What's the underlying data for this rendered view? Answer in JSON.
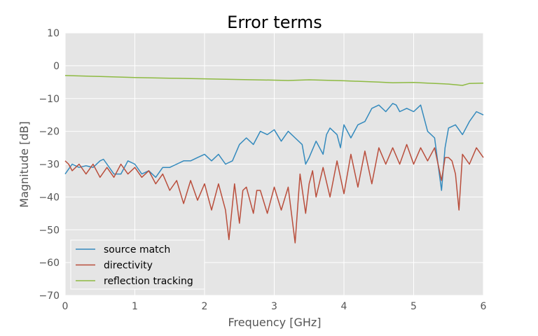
{
  "chart_data": {
    "type": "line",
    "title": "Error terms",
    "xlabel": "Frequency [GHz]",
    "ylabel": "Magnitude [dB]",
    "xlim": [
      0,
      6
    ],
    "ylim": [
      -70,
      10
    ],
    "xticks": [
      0,
      1,
      2,
      3,
      4,
      5,
      6
    ],
    "yticks": [
      10,
      0,
      -10,
      -20,
      -30,
      -40,
      -50,
      -60,
      -70
    ],
    "grid": true,
    "legend_position": "lower-left",
    "background_color": "#e5e5e5",
    "series": [
      {
        "name": "source match",
        "color": "#348abd",
        "x": [
          0,
          0.1,
          0.2,
          0.3,
          0.4,
          0.5,
          0.55,
          0.6,
          0.7,
          0.8,
          0.9,
          1.0,
          1.1,
          1.2,
          1.3,
          1.4,
          1.5,
          1.6,
          1.7,
          1.8,
          1.9,
          2.0,
          2.1,
          2.2,
          2.3,
          2.4,
          2.5,
          2.6,
          2.7,
          2.8,
          2.9,
          3.0,
          3.1,
          3.2,
          3.3,
          3.4,
          3.45,
          3.5,
          3.6,
          3.7,
          3.75,
          3.8,
          3.9,
          3.95,
          4.0,
          4.1,
          4.2,
          4.3,
          4.4,
          4.5,
          4.6,
          4.7,
          4.75,
          4.8,
          4.9,
          5.0,
          5.1,
          5.2,
          5.3,
          5.35,
          5.4,
          5.45,
          5.5,
          5.6,
          5.7,
          5.8,
          5.9,
          6.0
        ],
        "y": [
          -33,
          -30,
          -31,
          -30.5,
          -31,
          -29,
          -28.5,
          -30,
          -33,
          -33,
          -29,
          -30,
          -33,
          -32,
          -34,
          -31,
          -31,
          -30,
          -29,
          -29,
          -28,
          -27,
          -29,
          -27,
          -30,
          -29,
          -24,
          -22,
          -24,
          -20,
          -21,
          -19.5,
          -23,
          -20,
          -22,
          -24,
          -30,
          -28,
          -23,
          -27,
          -21,
          -19,
          -21,
          -25,
          -18,
          -22,
          -18,
          -17,
          -13,
          -12,
          -14,
          -11.5,
          -12,
          -14,
          -13,
          -14,
          -12,
          -20,
          -22,
          -30,
          -38,
          -25,
          -19,
          -18,
          -21,
          -17,
          -14,
          -15
        ]
      },
      {
        "name": "directivity",
        "color": "#b94e3c",
        "x": [
          0,
          0.05,
          0.1,
          0.2,
          0.3,
          0.4,
          0.5,
          0.6,
          0.7,
          0.8,
          0.9,
          1.0,
          1.1,
          1.2,
          1.3,
          1.4,
          1.5,
          1.6,
          1.7,
          1.8,
          1.9,
          2.0,
          2.1,
          2.2,
          2.3,
          2.35,
          2.43,
          2.5,
          2.55,
          2.6,
          2.7,
          2.75,
          2.8,
          2.9,
          3.0,
          3.1,
          3.2,
          3.3,
          3.37,
          3.45,
          3.5,
          3.55,
          3.6,
          3.7,
          3.8,
          3.9,
          4.0,
          4.1,
          4.2,
          4.3,
          4.4,
          4.5,
          4.6,
          4.7,
          4.8,
          4.9,
          5.0,
          5.1,
          5.2,
          5.3,
          5.35,
          5.4,
          5.45,
          5.5,
          5.55,
          5.6,
          5.65,
          5.7,
          5.8,
          5.9,
          6.0
        ],
        "y": [
          -29,
          -30,
          -32,
          -30,
          -33,
          -30,
          -34,
          -31,
          -34,
          -30,
          -33,
          -31,
          -34,
          -32,
          -36,
          -33,
          -38,
          -35,
          -42,
          -35,
          -41,
          -36,
          -44,
          -36,
          -44,
          -53,
          -36,
          -48,
          -38,
          -37,
          -45,
          -38,
          -38,
          -45,
          -37,
          -44,
          -37,
          -54,
          -33,
          -45,
          -36,
          -32,
          -40,
          -31,
          -40,
          -29,
          -39,
          -27,
          -37,
          -26,
          -36,
          -25,
          -30,
          -25,
          -30,
          -24,
          -30,
          -25,
          -29,
          -25,
          -30,
          -35,
          -28,
          -28,
          -29,
          -33,
          -44,
          -27,
          -30,
          -25,
          -28
        ]
      },
      {
        "name": "reflection tracking",
        "color": "#8eba42",
        "x": [
          0,
          0.5,
          1.0,
          1.5,
          2.0,
          2.5,
          3.0,
          3.2,
          3.5,
          4.0,
          4.5,
          4.7,
          5.0,
          5.2,
          5.5,
          5.7,
          5.8,
          6.0
        ],
        "y": [
          -3,
          -3.3,
          -3.6,
          -3.8,
          -4,
          -4.2,
          -4.4,
          -4.5,
          -4.3,
          -4.6,
          -5,
          -5.2,
          -5.1,
          -5.3,
          -5.6,
          -6,
          -5.4,
          -5.3
        ]
      }
    ]
  }
}
